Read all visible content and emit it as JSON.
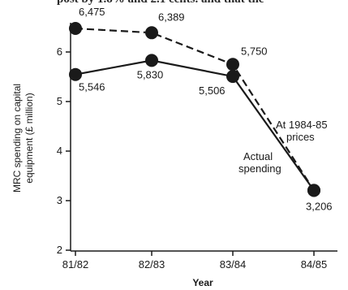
{
  "page": {
    "top_fragment": "post by 1.8% and 2.1 cents. and that the"
  },
  "chart_data": {
    "type": "line",
    "categories": [
      "81/82",
      "82/83",
      "83/84",
      "84/85"
    ],
    "xlabel": "Year",
    "ylabel_lines": [
      "MRC spending on capital",
      "equipment (£ million)"
    ],
    "ylim": [
      2,
      6.6
    ],
    "yticks": [
      2,
      3,
      4,
      5,
      6
    ],
    "grid": false,
    "series": [
      {
        "name": "At 1984-85 prices",
        "name_lines": [
          "At 1984-85",
          "prices"
        ],
        "style": "dashed",
        "values": [
          6.475,
          6.389,
          5.75,
          3.206
        ],
        "labels": [
          "6,475",
          "6,389",
          "5,750",
          ""
        ]
      },
      {
        "name": "Actual spending",
        "name_lines": [
          "Actual",
          "spending"
        ],
        "style": "solid",
        "values": [
          5.546,
          5.83,
          5.506,
          3.206
        ],
        "labels": [
          "5,546",
          "5,830",
          "5,506",
          "3,206"
        ]
      }
    ]
  }
}
